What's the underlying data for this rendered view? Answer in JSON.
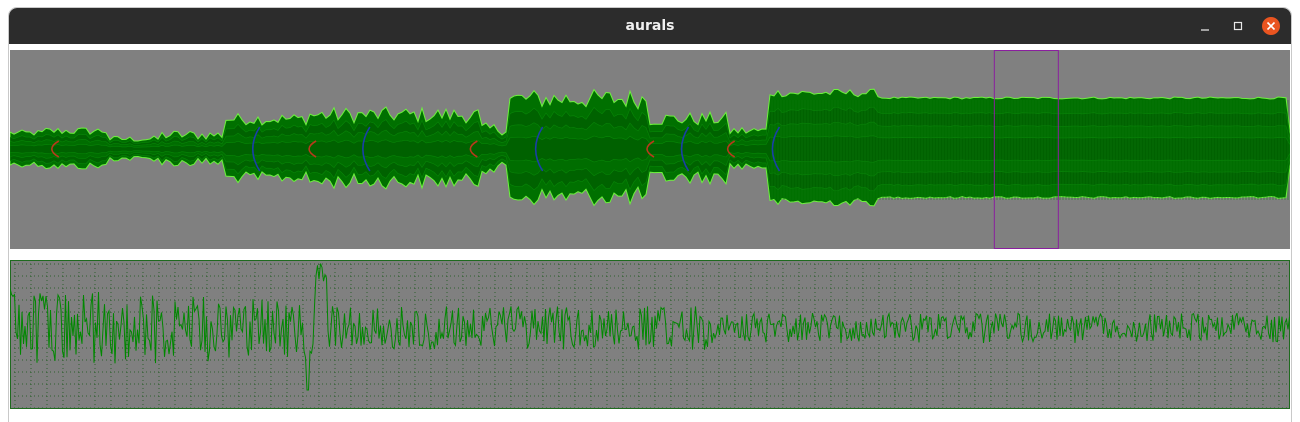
{
  "window": {
    "title": "aurals"
  },
  "icons": {
    "minimize": "minimize-icon",
    "maximize": "maximize-icon",
    "close": "close-icon"
  },
  "colors": {
    "titlebar": "#2c2c2c",
    "panel_bg": "#808080",
    "envelope_fill": "#007000",
    "envelope_inner": "#006000",
    "envelope_edge": "#6cf23c",
    "waveform": "#008800",
    "grid_dot": "#2e5f2e",
    "marker_blue": "#1a3fa8",
    "marker_red": "#b83a1c",
    "selection": "#8a1f9e",
    "close_button": "#e95420"
  },
  "spectrum": {
    "markers": [
      {
        "kind": "red",
        "at": 0.035
      },
      {
        "kind": "blue",
        "at": 0.192
      },
      {
        "kind": "red",
        "at": 0.236
      },
      {
        "kind": "blue",
        "at": 0.278
      },
      {
        "kind": "red",
        "at": 0.362
      },
      {
        "kind": "blue",
        "at": 0.413
      },
      {
        "kind": "red",
        "at": 0.5
      },
      {
        "kind": "blue",
        "at": 0.527
      },
      {
        "kind": "red",
        "at": 0.563
      },
      {
        "kind": "blue",
        "at": 0.598
      }
    ],
    "selection": {
      "start": 0.769,
      "end": 0.819
    }
  }
}
